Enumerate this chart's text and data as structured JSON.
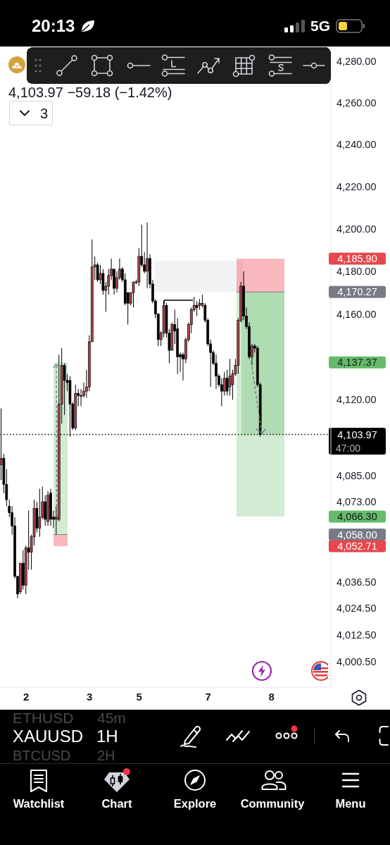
{
  "chart_data": {
    "type": "candlestick",
    "categories": [
      null,
      null,
      null,
      null,
      null,
      null,
      null,
      null,
      null,
      "2",
      null,
      null,
      null,
      null,
      null,
      null,
      null,
      null,
      null,
      null,
      null,
      null,
      null,
      null,
      null,
      null,
      null,
      null,
      null,
      null,
      null,
      null,
      "3",
      null,
      null,
      null,
      null,
      null,
      null,
      null,
      null,
      null,
      null,
      null,
      null,
      null,
      null,
      null,
      null,
      null,
      "5",
      null,
      null,
      null,
      null,
      null,
      null,
      null,
      null,
      null,
      null,
      null,
      null,
      null,
      null,
      null,
      null,
      null,
      null,
      null,
      null,
      null,
      null,
      null,
      null,
      "7",
      null,
      null,
      null,
      null,
      null,
      null,
      null,
      null,
      null,
      null,
      null,
      null,
      null,
      null,
      null,
      null,
      null,
      null,
      null,
      null,
      null,
      null,
      "8",
      null,
      null,
      null,
      null,
      null,
      null,
      null,
      null,
      null,
      null,
      null,
      null,
      null,
      null,
      null,
      null,
      null,
      null,
      null,
      null,
      null
    ],
    "ohlc": [
      [
        4090,
        4116,
        4083,
        4093
      ],
      [
        4093,
        4095,
        4077,
        4081
      ],
      [
        4081,
        4088,
        4071,
        4074
      ],
      [
        4071,
        4074,
        4066,
        4068
      ],
      [
        4068,
        4071,
        4058,
        4062
      ],
      [
        4062,
        4066,
        4038,
        4039
      ],
      [
        4039,
        4039,
        4029,
        4031
      ],
      [
        4032,
        4045,
        4031,
        4045
      ],
      [
        4045,
        4051,
        4033,
        4035
      ],
      [
        4035,
        4053,
        4031,
        4052
      ],
      [
        4052,
        4069,
        4042,
        4050
      ],
      [
        4050,
        4058,
        4042,
        4057
      ],
      [
        4057,
        4074,
        4053,
        4070
      ],
      [
        4070,
        4073,
        4059,
        4061
      ],
      [
        4061,
        4079,
        4057,
        4066
      ],
      [
        4066,
        4080,
        4065,
        4073
      ],
      [
        4073,
        4076,
        4062,
        4065
      ],
      [
        4064,
        4078,
        4062,
        4076
      ],
      [
        4077,
        4079,
        4062,
        4065
      ],
      [
        4066,
        4069,
        4061,
        4065
      ],
      [
        4065,
        4071,
        4058,
        4066
      ],
      [
        4065,
        4141,
        4064,
        4118
      ],
      [
        4118,
        4144,
        4109,
        4136
      ],
      [
        4136,
        4137,
        4113,
        4129
      ],
      [
        4129,
        4132,
        4124,
        4128
      ],
      [
        4129,
        4131,
        4103,
        4118
      ],
      [
        4118,
        4119,
        4106,
        4107
      ],
      [
        4107,
        4127,
        4106,
        4123
      ],
      [
        4123,
        4125,
        4117,
        4122
      ],
      [
        4122,
        4125,
        4117,
        4122
      ],
      [
        4122,
        4128,
        4121,
        4124
      ],
      [
        4124,
        4134,
        4121,
        4126
      ],
      [
        4126,
        4150,
        4124,
        4147
      ],
      [
        4147,
        4195,
        4147,
        4182
      ],
      [
        4182,
        4187,
        4176,
        4183
      ],
      [
        4183,
        4184,
        4175,
        4176
      ],
      [
        4176,
        4183,
        4174,
        4179
      ],
      [
        4179,
        4181,
        4169,
        4171
      ],
      [
        4171,
        4175,
        4161,
        4173
      ],
      [
        4173,
        4181,
        4169,
        4178
      ],
      [
        4178,
        4186,
        4176,
        4181
      ],
      [
        4181,
        4181,
        4169,
        4172
      ],
      [
        4172,
        4180,
        4170,
        4177
      ],
      [
        4177,
        4186,
        4176,
        4181
      ],
      [
        4181,
        4182,
        4175,
        4176
      ],
      [
        4176,
        4179,
        4164,
        4165
      ],
      [
        4170,
        4170,
        4155,
        4165
      ],
      [
        4165,
        4170,
        4164,
        4170
      ],
      [
        4170,
        4175,
        4163,
        4175
      ],
      [
        4175,
        4176,
        4174,
        4175
      ],
      [
        4175,
        4191,
        4173,
        4187
      ],
      [
        4187,
        4202,
        4182,
        4183
      ],
      [
        4183,
        4189,
        4179,
        4180
      ],
      [
        4180,
        4203,
        4172,
        4186
      ],
      [
        4186,
        4188,
        4172,
        4174
      ],
      [
        4174,
        4176,
        4165,
        4166
      ],
      [
        4166,
        4167,
        4158,
        4160
      ],
      [
        4160,
        4160,
        4145,
        4148
      ],
      [
        4148,
        4152,
        4145,
        4151
      ],
      [
        4151,
        4166,
        4149,
        4164
      ],
      [
        4164,
        4165,
        4149,
        4151
      ],
      [
        4151,
        4153,
        4137,
        4143
      ],
      [
        4143,
        4156,
        4143,
        4155
      ],
      [
        4155,
        4162,
        4146,
        4152
      ],
      [
        4153,
        4158,
        4132,
        4140
      ],
      [
        4141,
        4142,
        4133,
        4140
      ],
      [
        4141,
        4142,
        4129,
        4139
      ],
      [
        4139,
        4149,
        4137,
        4148
      ],
      [
        4148,
        4156,
        4147,
        4155
      ],
      [
        4155,
        4163,
        4151,
        4162
      ],
      [
        4162,
        4168,
        4161,
        4164
      ],
      [
        4164,
        4166,
        4159,
        4163
      ],
      [
        4164,
        4167,
        4162,
        4165
      ],
      [
        4164,
        4169,
        4163,
        4165
      ],
      [
        4164,
        4165,
        4156,
        4157
      ],
      [
        4157,
        4158,
        4145,
        4146
      ],
      [
        4146,
        4148,
        4126,
        4142
      ],
      [
        4142,
        4143,
        4136,
        4137
      ],
      [
        4137,
        4141,
        4125,
        4131
      ],
      [
        4131,
        4132,
        4126,
        4127
      ],
      [
        4127,
        4130,
        4117,
        4124
      ],
      [
        4124,
        4133,
        4122,
        4130
      ],
      [
        4130,
        4134,
        4122,
        4124
      ],
      [
        4126,
        4139,
        4122,
        4131
      ],
      [
        4127,
        4134,
        4120,
        4132
      ],
      [
        4132,
        4139,
        4131,
        4136
      ],
      [
        4136,
        4158,
        4132,
        4157
      ],
      [
        4157,
        4175,
        4156,
        4173
      ],
      [
        4173,
        4180,
        4157,
        4159
      ],
      [
        4159,
        4163,
        4153,
        4154
      ],
      [
        4154,
        4156,
        4139,
        4140
      ],
      [
        4140,
        4146,
        4136,
        4145
      ],
      [
        4145,
        4146,
        4142,
        4144
      ],
      [
        4144,
        4145,
        4126,
        4127
      ],
      [
        4127,
        4128,
        4103,
        4104
      ],
      null,
      null,
      null,
      null,
      null,
      null,
      null,
      null,
      null,
      null,
      null,
      null,
      null,
      null,
      null,
      null,
      null,
      null,
      null,
      null,
      null,
      null,
      null,
      null,
      null
    ],
    "colors": [
      "#b0444a",
      "#000000",
      "#000000",
      "#000000",
      "#000000",
      "#000000",
      "#000000",
      "#b0444a",
      "#000000",
      "#b0444a",
      "#000000",
      "#b0444a",
      "#b0444a",
      "#000000",
      "#b0444a",
      "#b0444a",
      "#000000",
      "#b0444a",
      "#000000",
      "#000000",
      "#b0444a",
      "#b0444a",
      "#b0444a",
      "#000000",
      "#000000",
      "#000000",
      "#000000",
      "#b0444a",
      "#000000",
      "#000000",
      "#b0444a",
      "#b0444a",
      "#b0444a",
      "#b0444a",
      "#b0444a",
      "#000000",
      "#b0444a",
      "#000000",
      "#b0444a",
      "#b0444a",
      "#b0444a",
      "#000000",
      "#b0444a",
      "#b0444a",
      "#000000",
      "#000000",
      "#000000",
      "#b0444a",
      "#b0444a",
      "#000000",
      "#b0444a",
      "#000000",
      "#000000",
      "#b0444a",
      "#000000",
      "#000000",
      "#000000",
      "#000000",
      "#b0444a",
      "#b0444a",
      "#000000",
      "#000000",
      "#b0444a",
      "#000000",
      "#000000",
      "#000000",
      "#000000",
      "#b0444a",
      "#b0444a",
      "#b0444a",
      "#b0444a",
      "#000000",
      "#b0444a",
      "#b0444a",
      "#000000",
      "#000000",
      "#000000",
      "#000000",
      "#000000",
      "#000000",
      "#000000",
      "#b0444a",
      "#000000",
      "#b0444a",
      "#b0444a",
      "#b0444a",
      "#b0444a",
      "#b0444a",
      "#000000",
      "#000000",
      "#000000",
      "#b0444a",
      "#000000",
      "#000000",
      "#000000",
      null,
      null,
      null,
      null,
      null,
      null,
      null,
      null,
      null,
      null,
      null,
      null,
      null,
      null,
      null,
      null,
      null,
      null,
      null,
      null,
      null,
      null,
      null,
      null,
      null
    ],
    "ylim": [
      3989,
      4287
    ],
    "yticks": [
      {
        "value": 4280,
        "label": "4,280.00"
      },
      {
        "value": 4260,
        "label": "4,260.00"
      },
      {
        "value": 4240,
        "label": "4,240.00"
      },
      {
        "value": 4220,
        "label": "4,220.00"
      },
      {
        "value": 4200,
        "label": "4,200.00"
      },
      {
        "value": 4180,
        "label": "4,180.00"
      },
      {
        "value": 4160,
        "label": "4,160.00"
      },
      {
        "value": 4120,
        "label": "4,120.00"
      },
      {
        "value": 4085,
        "label": "4,085.00"
      },
      {
        "value": 4073,
        "label": "4,073.00"
      },
      {
        "value": 4036.5,
        "label": "4,036.50"
      },
      {
        "value": 4024.5,
        "label": "4,024.50"
      },
      {
        "value": 4012.5,
        "label": "4,012.50"
      },
      {
        "value": 4000.5,
        "label": "4,000.50"
      }
    ],
    "log": true,
    "ref_lines": [
      {
        "axis": "y",
        "value": 4103.97,
        "label": "4,103.97",
        "color": "#000000",
        "line_style": "dotted"
      }
    ],
    "annotations": [
      "20:13",
      "5G",
      "4,103.97 −59.18 (−1.42%)",
      "3",
      "47:00",
      "ETHUSD",
      "45m",
      "XAUUSD",
      "1H",
      "BTCUSD",
      "2H",
      "Watchlist",
      "Chart",
      "Explore",
      "Community",
      "Menu",
      "4,185.90",
      "4,170.27",
      "4,137.37",
      "4,066.30",
      "4,058.00",
      "4,052.71"
    ]
  }
}
